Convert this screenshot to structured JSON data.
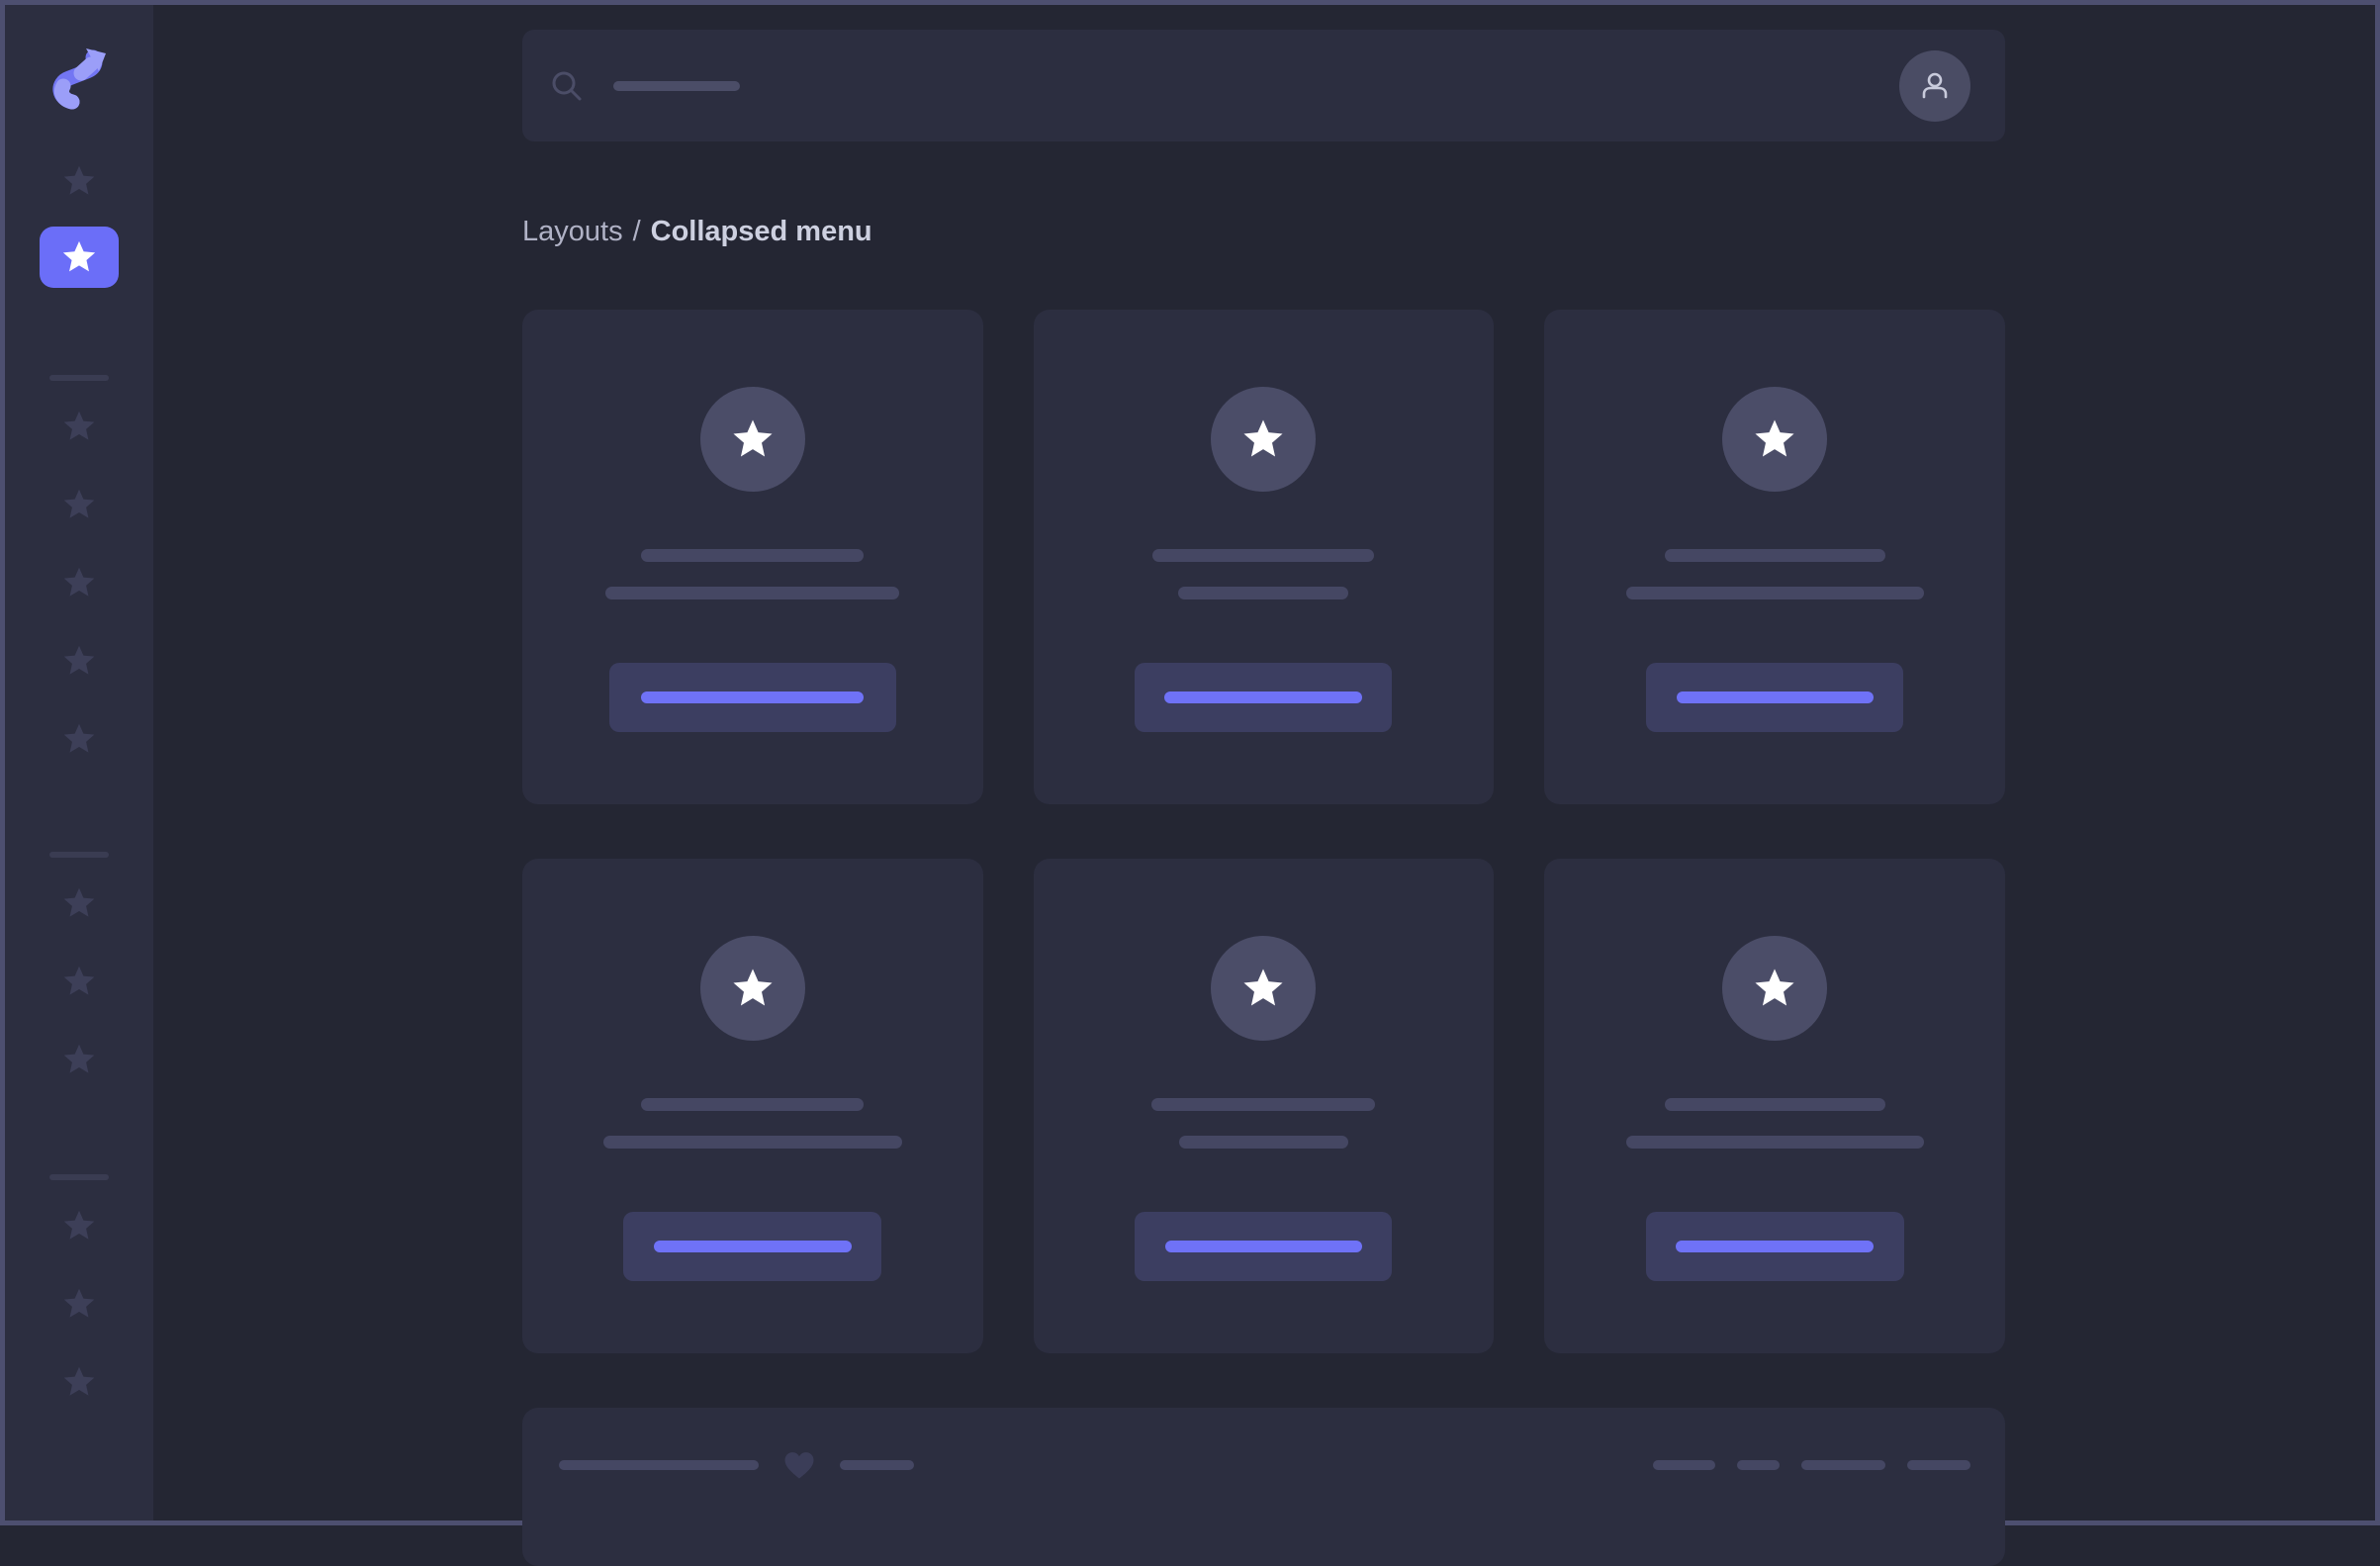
{
  "colors": {
    "page_bg": "#242633",
    "page_border": "#4d4f70",
    "panel_bg": "#2c2e40",
    "accent": "#6b6ef8",
    "accent_light": "#9b9ef8",
    "accent_mid": "#7376f3",
    "button_bg": "#3c3e61",
    "button_line": "#6f72f7",
    "skeleton_line": "#454763",
    "inactive_icon": "#3d3f58",
    "circle_bg": "#4b4d68",
    "avatar_bg": "#4a4c64",
    "breadcrumb_text": "#b0b2c6",
    "breadcrumb_current": "#cdd0e0"
  },
  "icons": {
    "logo": "s-curve-arrow",
    "sidebar_item": "star",
    "search": "magnifier",
    "account": "person",
    "card_avatar": "star",
    "favorite": "heart"
  },
  "sidebar": {
    "top_items": [
      {
        "icon": "star",
        "active": false
      },
      {
        "icon": "star",
        "active": true
      }
    ],
    "groups": [
      {
        "divider": true,
        "stars": 5
      },
      {
        "divider": true,
        "stars": 3
      },
      {
        "divider": true,
        "stars": 3
      }
    ]
  },
  "search": {
    "placeholder_w": 128
  },
  "breadcrumb": {
    "section": "Layouts",
    "separator": "/",
    "current": "Collapsed menu"
  },
  "cards": [
    {
      "line1_w": 225,
      "line2_w": 297,
      "button_w": 290,
      "button_line_w": 225
    },
    {
      "line1_w": 224,
      "line2_w": 172,
      "button_w": 260,
      "button_line_w": 200
    },
    {
      "line1_w": 223,
      "line2_w": 301,
      "button_w": 260,
      "button_line_w": 199
    },
    {
      "line1_w": 225,
      "line2_w": 302,
      "button_w": 261,
      "button_line_w": 200
    },
    {
      "line1_w": 226,
      "line2_w": 171,
      "button_w": 260,
      "button_line_w": 199
    },
    {
      "line1_w": 223,
      "line2_w": 301,
      "button_w": 261,
      "button_line_w": 200
    }
  ],
  "footer": {
    "line_w": 202,
    "short_line_w": 75,
    "dash_ws": [
      63,
      43,
      85,
      64
    ]
  }
}
